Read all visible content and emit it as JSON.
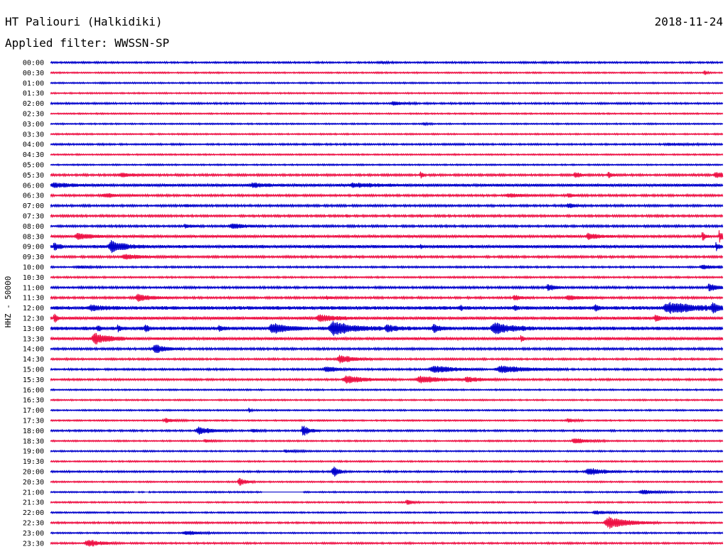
{
  "header": {
    "title": "HT Paliouri (Halkidiki)",
    "date": "2018-11-24",
    "filter": "Applied filter: WWSSN-SP"
  },
  "chart_data": {
    "type": "line",
    "title": "HT Paliouri (Halkidiki)",
    "ylabel": "HHZ - 50000",
    "row_labels": [
      "00:00",
      "00:30",
      "01:00",
      "01:30",
      "02:00",
      "02:30",
      "03:00",
      "03:30",
      "04:00",
      "04:30",
      "05:00",
      "05:30",
      "06:00",
      "06:30",
      "07:00",
      "07:30",
      "08:00",
      "08:30",
      "09:00",
      "09:30",
      "10:00",
      "10:30",
      "11:00",
      "11:30",
      "12:00",
      "12:30",
      "13:00",
      "13:30",
      "14:00",
      "14:30",
      "15:00",
      "15:30",
      "16:00",
      "16:30",
      "17:00",
      "17:30",
      "18:00",
      "18:30",
      "19:00",
      "19:30",
      "20:00",
      "20:30",
      "21:00",
      "21:30",
      "22:00",
      "22:30",
      "23:00",
      "23:30"
    ],
    "trace_colors": [
      "#0000cc",
      "#ee1144"
    ],
    "trace_span_minutes": 30,
    "noise_level": [
      1.2,
      1.0,
      1.0,
      1.0,
      1.2,
      1.0,
      1.0,
      1.0,
      1.2,
      1.0,
      1.0,
      1.5,
      2.0,
      1.5,
      1.5,
      1.5,
      1.5,
      1.8,
      2.2,
      1.5,
      1.2,
      1.2,
      1.5,
      1.5,
      2.5,
      2.0,
      2.5,
      2.0,
      1.5,
      1.3,
      1.3,
      1.3,
      1.0,
      1.0,
      1.0,
      1.0,
      1.2,
      1.0,
      1.0,
      1.0,
      1.2,
      1.0,
      1.0,
      1.0,
      1.0,
      1.2,
      1.0,
      1.2
    ],
    "events": [
      [
        [
          0.49,
          1.5,
          0.008
        ]
      ],
      [
        [
          0.973,
          4,
          0.003
        ]
      ],
      [],
      [],
      [
        [
          0.51,
          2.5,
          0.015
        ]
      ],
      [],
      [
        [
          0.555,
          2,
          0.006
        ]
      ],
      [],
      [
        [
          0.92,
          1.5,
          0.03
        ]
      ],
      [],
      [],
      [
        [
          0.105,
          2.5,
          0.02
        ],
        [
          0.55,
          5,
          0.004
        ],
        [
          0.78,
          4,
          0.008
        ],
        [
          0.83,
          3.5,
          0.008
        ],
        [
          0.99,
          4,
          0.015
        ]
      ],
      [
        [
          0.005,
          3,
          0.02
        ],
        [
          0.3,
          2.5,
          0.02
        ],
        [
          0.45,
          2.5,
          0.03
        ]
      ],
      [
        [
          0.08,
          2.5,
          0.02
        ],
        [
          0.68,
          2.5,
          0.02
        ],
        [
          0.77,
          2.5,
          0.01
        ]
      ],
      [
        [
          0.2,
          2,
          0.01
        ],
        [
          0.77,
          3,
          0.01
        ]
      ],
      [
        [
          0.44,
          2,
          0.003
        ],
        [
          0.55,
          2,
          0.003
        ]
      ],
      [
        [
          0.2,
          2,
          0.01
        ],
        [
          0.27,
          3.5,
          0.02
        ]
      ],
      [
        [
          0.04,
          4,
          0.02
        ],
        [
          0.8,
          4,
          0.015
        ],
        [
          0.97,
          6,
          0.004
        ],
        [
          0.995,
          9,
          0.005
        ]
      ],
      [
        [
          0.09,
          8,
          0.02
        ],
        [
          0.005,
          6,
          0.006
        ],
        [
          0.99,
          6,
          0.004
        ],
        [
          0.55,
          2,
          0.003
        ]
      ],
      [
        [
          0.11,
          3,
          0.03
        ]
      ],
      [
        [
          0.04,
          2,
          0.015
        ],
        [
          0.97,
          3,
          0.02
        ]
      ],
      [],
      [
        [
          0.74,
          5,
          0.01
        ],
        [
          0.98,
          6,
          0.01
        ]
      ],
      [
        [
          0.13,
          5,
          0.02
        ],
        [
          0.41,
          2,
          0.01
        ],
        [
          0.69,
          4,
          0.01
        ],
        [
          0.77,
          3,
          0.02
        ]
      ],
      [
        [
          0.06,
          3,
          0.02
        ],
        [
          0.61,
          4,
          0.003
        ],
        [
          0.69,
          4,
          0.003
        ],
        [
          0.81,
          5,
          0.003
        ],
        [
          0.92,
          7,
          0.04
        ],
        [
          0.985,
          11,
          0.005
        ]
      ],
      [
        [
          0.005,
          7,
          0.004
        ],
        [
          0.4,
          5,
          0.02
        ],
        [
          0.9,
          4,
          0.01
        ]
      ],
      [
        [
          0.07,
          4,
          0.004
        ],
        [
          0.1,
          4,
          0.004
        ],
        [
          0.14,
          6,
          0.004
        ],
        [
          0.25,
          5,
          0.004
        ],
        [
          0.33,
          7,
          0.02
        ],
        [
          0.42,
          9,
          0.03
        ],
        [
          0.5,
          4,
          0.015
        ],
        [
          0.57,
          5,
          0.01
        ],
        [
          0.66,
          8,
          0.025
        ]
      ],
      [
        [
          0.065,
          8,
          0.02
        ],
        [
          0.7,
          6,
          0.003
        ]
      ],
      [
        [
          0.155,
          6,
          0.015
        ]
      ],
      [
        [
          0.43,
          6,
          0.02
        ]
      ],
      [
        [
          0.41,
          4,
          0.02
        ],
        [
          0.57,
          5,
          0.03
        ],
        [
          0.67,
          5,
          0.04
        ]
      ],
      [
        [
          0.44,
          5,
          0.03
        ],
        [
          0.55,
          5,
          0.03
        ],
        [
          0.62,
          4,
          0.02
        ]
      ],
      [],
      [],
      [
        [
          0.295,
          4,
          0.003
        ]
      ],
      [
        [
          0.17,
          3,
          0.015
        ],
        [
          0.77,
          2.5,
          0.01
        ]
      ],
      [
        [
          0.22,
          5,
          0.02
        ],
        [
          0.3,
          2,
          0.01
        ],
        [
          0.375,
          8,
          0.01
        ]
      ],
      [
        [
          0.23,
          2,
          0.01
        ],
        [
          0.78,
          4,
          0.02
        ]
      ],
      [
        [
          0.35,
          2,
          0.015
        ]
      ],
      [],
      [
        [
          0.42,
          8,
          0.008
        ],
        [
          0.8,
          6,
          0.02
        ]
      ],
      [
        [
          0.28,
          6,
          0.01
        ]
      ],
      [
        [
          0.88,
          3,
          0.02
        ]
      ],
      [
        [
          0.53,
          3,
          0.01
        ]
      ],
      [
        [
          0.81,
          3,
          0.015
        ]
      ],
      [
        [
          0.83,
          8,
          0.03
        ]
      ],
      [
        [
          0.2,
          3,
          0.02
        ]
      ],
      [
        [
          0.055,
          5,
          0.02
        ]
      ]
    ],
    "gaps": [
      [
        42,
        0.125,
        0.13
      ],
      [
        42,
        0.14,
        0.145
      ],
      [
        42,
        0.315,
        0.375
      ]
    ]
  }
}
